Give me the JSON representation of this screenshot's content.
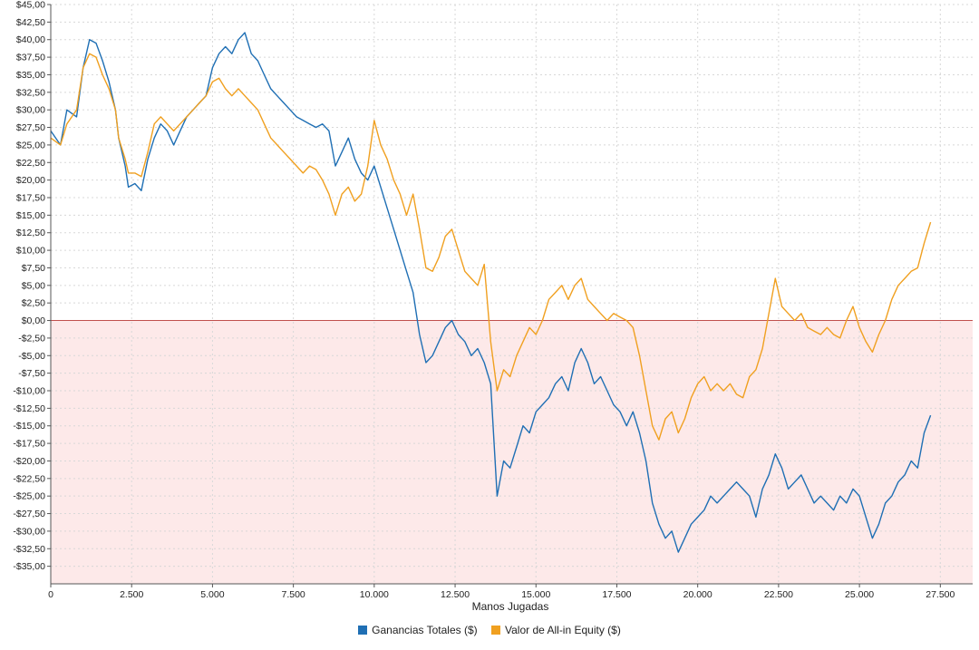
{
  "chart_data": {
    "type": "line",
    "title": "",
    "xlabel": "Manos Jugadas",
    "ylabel": "",
    "xlim": [
      0,
      28500
    ],
    "ylim": [
      -37.5,
      45
    ],
    "x_ticks": [
      0,
      2500,
      5000,
      7500,
      10000,
      12500,
      15000,
      17500,
      20000,
      22500,
      25000,
      27500
    ],
    "x_tick_labels": [
      "0",
      "2.500",
      "5.000",
      "7.500",
      "10.000",
      "12.500",
      "15.000",
      "17.500",
      "20.000",
      "22.500",
      "25.000",
      "27.500"
    ],
    "y_ticks": [
      45,
      42.5,
      40,
      37.5,
      35,
      32.5,
      30,
      27.5,
      25,
      22.5,
      20,
      17.5,
      15,
      12.5,
      10,
      7.5,
      5,
      2.5,
      0,
      -2.5,
      -5,
      -7.5,
      -10,
      -12.5,
      -15,
      -17.5,
      -20,
      -22.5,
      -25,
      -27.5,
      -30,
      -32.5,
      -35
    ],
    "y_tick_labels": [
      "$45,00",
      "$42,50",
      "$40,00",
      "$37,50",
      "$35,00",
      "$32,50",
      "$30,00",
      "$27,50",
      "$25,00",
      "$22,50",
      "$20,00",
      "$17,50",
      "$15,00",
      "$12,50",
      "$10,00",
      "$7,50",
      "$5,00",
      "$2,50",
      "$0,00",
      "-$2,50",
      "-$5,00",
      "-$7,50",
      "-$10,00",
      "-$12,50",
      "-$15,00",
      "-$17,50",
      "-$20,00",
      "-$22,50",
      "-$25,00",
      "-$27,50",
      "-$30,00",
      "-$32,50",
      "-$35,00"
    ],
    "grid": true,
    "negative_region_color": "#fde9e9",
    "zero_line_color": "#c0504d",
    "legend_position": "bottom",
    "series": [
      {
        "name": "Ganancias Totales ($)",
        "color": "#1f6fb4",
        "points": [
          [
            0,
            27
          ],
          [
            300,
            25
          ],
          [
            500,
            30
          ],
          [
            800,
            29
          ],
          [
            1000,
            36
          ],
          [
            1200,
            40
          ],
          [
            1400,
            39.5
          ],
          [
            1600,
            37
          ],
          [
            1800,
            34
          ],
          [
            2000,
            30
          ],
          [
            2100,
            26
          ],
          [
            2300,
            22
          ],
          [
            2400,
            19
          ],
          [
            2600,
            19.5
          ],
          [
            2800,
            18.5
          ],
          [
            3000,
            23
          ],
          [
            3200,
            26
          ],
          [
            3400,
            28
          ],
          [
            3600,
            27
          ],
          [
            3800,
            25
          ],
          [
            4000,
            27
          ],
          [
            4200,
            29
          ],
          [
            4400,
            30
          ],
          [
            4600,
            31
          ],
          [
            4800,
            32
          ],
          [
            5000,
            36
          ],
          [
            5200,
            38
          ],
          [
            5400,
            39
          ],
          [
            5600,
            38
          ],
          [
            5800,
            40
          ],
          [
            6000,
            41
          ],
          [
            6200,
            38
          ],
          [
            6400,
            37
          ],
          [
            6600,
            35
          ],
          [
            6800,
            33
          ],
          [
            7000,
            32
          ],
          [
            7200,
            31
          ],
          [
            7400,
            30
          ],
          [
            7600,
            29
          ],
          [
            7800,
            28.5
          ],
          [
            8000,
            28
          ],
          [
            8200,
            27.5
          ],
          [
            8400,
            28
          ],
          [
            8600,
            27
          ],
          [
            8800,
            22
          ],
          [
            9000,
            24
          ],
          [
            9200,
            26
          ],
          [
            9400,
            23
          ],
          [
            9600,
            21
          ],
          [
            9800,
            20
          ],
          [
            10000,
            22
          ],
          [
            10200,
            19
          ],
          [
            10400,
            16
          ],
          [
            10600,
            13
          ],
          [
            10800,
            10
          ],
          [
            11000,
            7
          ],
          [
            11200,
            4
          ],
          [
            11400,
            -2
          ],
          [
            11600,
            -6
          ],
          [
            11800,
            -5
          ],
          [
            12000,
            -3
          ],
          [
            12200,
            -1
          ],
          [
            12400,
            0
          ],
          [
            12600,
            -2
          ],
          [
            12800,
            -3
          ],
          [
            13000,
            -5
          ],
          [
            13200,
            -4
          ],
          [
            13400,
            -6
          ],
          [
            13600,
            -9
          ],
          [
            13800,
            -25
          ],
          [
            14000,
            -20
          ],
          [
            14200,
            -21
          ],
          [
            14400,
            -18
          ],
          [
            14600,
            -15
          ],
          [
            14800,
            -16
          ],
          [
            15000,
            -13
          ],
          [
            15200,
            -12
          ],
          [
            15400,
            -11
          ],
          [
            15600,
            -9
          ],
          [
            15800,
            -8
          ],
          [
            16000,
            -10
          ],
          [
            16200,
            -6
          ],
          [
            16400,
            -4
          ],
          [
            16600,
            -6
          ],
          [
            16800,
            -9
          ],
          [
            17000,
            -8
          ],
          [
            17200,
            -10
          ],
          [
            17400,
            -12
          ],
          [
            17600,
            -13
          ],
          [
            17800,
            -15
          ],
          [
            18000,
            -13
          ],
          [
            18200,
            -16
          ],
          [
            18400,
            -20
          ],
          [
            18600,
            -26
          ],
          [
            18800,
            -29
          ],
          [
            19000,
            -31
          ],
          [
            19200,
            -30
          ],
          [
            19400,
            -33
          ],
          [
            19600,
            -31
          ],
          [
            19800,
            -29
          ],
          [
            20000,
            -28
          ],
          [
            20200,
            -27
          ],
          [
            20400,
            -25
          ],
          [
            20600,
            -26
          ],
          [
            20800,
            -25
          ],
          [
            21000,
            -24
          ],
          [
            21200,
            -23
          ],
          [
            21400,
            -24
          ],
          [
            21600,
            -25
          ],
          [
            21800,
            -28
          ],
          [
            22000,
            -24
          ],
          [
            22200,
            -22
          ],
          [
            22400,
            -19
          ],
          [
            22600,
            -21
          ],
          [
            22800,
            -24
          ],
          [
            23000,
            -23
          ],
          [
            23200,
            -22
          ],
          [
            23400,
            -24
          ],
          [
            23600,
            -26
          ],
          [
            23800,
            -25
          ],
          [
            24000,
            -26
          ],
          [
            24200,
            -27
          ],
          [
            24400,
            -25
          ],
          [
            24600,
            -26
          ],
          [
            24800,
            -24
          ],
          [
            25000,
            -25
          ],
          [
            25200,
            -28
          ],
          [
            25400,
            -31
          ],
          [
            25600,
            -29
          ],
          [
            25800,
            -26
          ],
          [
            26000,
            -25
          ],
          [
            26200,
            -23
          ],
          [
            26400,
            -22
          ],
          [
            26600,
            -20
          ],
          [
            26800,
            -21
          ],
          [
            27000,
            -16
          ],
          [
            27200,
            -13.5
          ]
        ]
      },
      {
        "name": "Valor de All-in Equity ($)",
        "color": "#f0a020",
        "points": [
          [
            0,
            26
          ],
          [
            300,
            25
          ],
          [
            500,
            28
          ],
          [
            800,
            30
          ],
          [
            1000,
            36
          ],
          [
            1200,
            38
          ],
          [
            1400,
            37.5
          ],
          [
            1600,
            35
          ],
          [
            1800,
            33
          ],
          [
            2000,
            30
          ],
          [
            2100,
            26
          ],
          [
            2300,
            23
          ],
          [
            2400,
            21
          ],
          [
            2600,
            21
          ],
          [
            2800,
            20.5
          ],
          [
            3000,
            24
          ],
          [
            3200,
            28
          ],
          [
            3400,
            29
          ],
          [
            3600,
            28
          ],
          [
            3800,
            27
          ],
          [
            4000,
            28
          ],
          [
            4200,
            29
          ],
          [
            4400,
            30
          ],
          [
            4600,
            31
          ],
          [
            4800,
            32
          ],
          [
            5000,
            34
          ],
          [
            5200,
            34.5
          ],
          [
            5400,
            33
          ],
          [
            5600,
            32
          ],
          [
            5800,
            33
          ],
          [
            6000,
            32
          ],
          [
            6200,
            31
          ],
          [
            6400,
            30
          ],
          [
            6600,
            28
          ],
          [
            6800,
            26
          ],
          [
            7000,
            25
          ],
          [
            7200,
            24
          ],
          [
            7400,
            23
          ],
          [
            7600,
            22
          ],
          [
            7800,
            21
          ],
          [
            8000,
            22
          ],
          [
            8200,
            21.5
          ],
          [
            8400,
            20
          ],
          [
            8600,
            18
          ],
          [
            8800,
            15
          ],
          [
            9000,
            18
          ],
          [
            9200,
            19
          ],
          [
            9400,
            17
          ],
          [
            9600,
            18
          ],
          [
            9800,
            22
          ],
          [
            10000,
            28.5
          ],
          [
            10200,
            25
          ],
          [
            10400,
            23
          ],
          [
            10600,
            20
          ],
          [
            10800,
            18
          ],
          [
            11000,
            15
          ],
          [
            11200,
            18
          ],
          [
            11400,
            13
          ],
          [
            11600,
            7.5
          ],
          [
            11800,
            7
          ],
          [
            12000,
            9
          ],
          [
            12200,
            12
          ],
          [
            12400,
            13
          ],
          [
            12600,
            10
          ],
          [
            12800,
            7
          ],
          [
            13000,
            6
          ],
          [
            13200,
            5
          ],
          [
            13400,
            8
          ],
          [
            13600,
            -3
          ],
          [
            13800,
            -10
          ],
          [
            14000,
            -7
          ],
          [
            14200,
            -8
          ],
          [
            14400,
            -5
          ],
          [
            14600,
            -3
          ],
          [
            14800,
            -1
          ],
          [
            15000,
            -2
          ],
          [
            15200,
            0
          ],
          [
            15400,
            3
          ],
          [
            15600,
            4
          ],
          [
            15800,
            5
          ],
          [
            16000,
            3
          ],
          [
            16200,
            5
          ],
          [
            16400,
            6
          ],
          [
            16600,
            3
          ],
          [
            16800,
            2
          ],
          [
            17000,
            1
          ],
          [
            17200,
            0
          ],
          [
            17400,
            1
          ],
          [
            17600,
            0.5
          ],
          [
            17800,
            0
          ],
          [
            18000,
            -1
          ],
          [
            18200,
            -5
          ],
          [
            18400,
            -10
          ],
          [
            18600,
            -15
          ],
          [
            18800,
            -17
          ],
          [
            19000,
            -14
          ],
          [
            19200,
            -13
          ],
          [
            19400,
            -16
          ],
          [
            19600,
            -14
          ],
          [
            19800,
            -11
          ],
          [
            20000,
            -9
          ],
          [
            20200,
            -8
          ],
          [
            20400,
            -10
          ],
          [
            20600,
            -9
          ],
          [
            20800,
            -10
          ],
          [
            21000,
            -9
          ],
          [
            21200,
            -10.5
          ],
          [
            21400,
            -11
          ],
          [
            21600,
            -8
          ],
          [
            21800,
            -7
          ],
          [
            22000,
            -4
          ],
          [
            22200,
            1
          ],
          [
            22400,
            6
          ],
          [
            22600,
            2
          ],
          [
            22800,
            1
          ],
          [
            23000,
            0
          ],
          [
            23200,
            1
          ],
          [
            23400,
            -1
          ],
          [
            23600,
            -1.5
          ],
          [
            23800,
            -2
          ],
          [
            24000,
            -1
          ],
          [
            24200,
            -2
          ],
          [
            24400,
            -2.5
          ],
          [
            24600,
            0
          ],
          [
            24800,
            2
          ],
          [
            25000,
            -1
          ],
          [
            25200,
            -3
          ],
          [
            25400,
            -4.5
          ],
          [
            25600,
            -2
          ],
          [
            25800,
            0
          ],
          [
            26000,
            3
          ],
          [
            26200,
            5
          ],
          [
            26400,
            6
          ],
          [
            26600,
            7
          ],
          [
            26800,
            7.5
          ],
          [
            27000,
            11
          ],
          [
            27200,
            14
          ]
        ]
      }
    ]
  }
}
